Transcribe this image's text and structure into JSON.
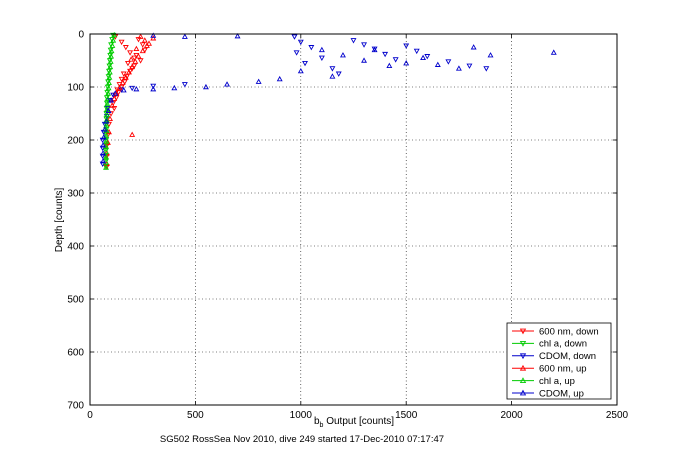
{
  "chart_data": {
    "type": "scatter",
    "title": "",
    "xlabel": "b_b Output [counts]",
    "xlabel_parts": {
      "base": "b",
      "sub": "b",
      "rest": " Output [counts]"
    },
    "ylabel": "Depth [counts]",
    "caption": "SG502 RossSea Nov 2010, dive 249 started 17-Dec-2010 07:17:47",
    "xlim": [
      0,
      2500
    ],
    "ylim": [
      0,
      700
    ],
    "y_reversed": true,
    "grid": true,
    "x_ticks": [
      0,
      500,
      1000,
      1500,
      2000,
      2500
    ],
    "y_ticks": [
      0,
      100,
      200,
      300,
      400,
      500,
      600,
      700
    ],
    "legend_position": "bottom-right",
    "series": [
      {
        "name": "600 nm, down",
        "color": "#ff0000",
        "marker": "triangle-down",
        "points": [
          [
            120,
            5
          ],
          [
            150,
            15
          ],
          [
            170,
            25
          ],
          [
            190,
            35
          ],
          [
            210,
            45
          ],
          [
            180,
            55
          ],
          [
            200,
            65
          ],
          [
            160,
            75
          ],
          [
            150,
            85
          ],
          [
            140,
            95
          ],
          [
            130,
            105
          ],
          [
            120,
            115
          ],
          [
            110,
            130
          ],
          [
            100,
            150
          ],
          [
            90,
            170
          ],
          [
            85,
            190
          ],
          [
            80,
            210
          ],
          [
            80,
            230
          ],
          [
            80,
            250
          ],
          [
            230,
            10
          ],
          [
            250,
            20
          ],
          [
            260,
            30
          ],
          [
            220,
            40
          ],
          [
            240,
            50
          ],
          [
            210,
            60
          ],
          [
            190,
            70
          ],
          [
            175,
            80
          ],
          [
            165,
            90
          ],
          [
            150,
            100
          ],
          [
            135,
            110
          ],
          [
            125,
            120
          ],
          [
            115,
            140
          ]
        ]
      },
      {
        "name": "chl a, down",
        "color": "#00cc00",
        "marker": "triangle-down",
        "points": [
          [
            110,
            2
          ],
          [
            105,
            10
          ],
          [
            100,
            20
          ],
          [
            98,
            30
          ],
          [
            96,
            40
          ],
          [
            94,
            50
          ],
          [
            92,
            60
          ],
          [
            90,
            70
          ],
          [
            88,
            80
          ],
          [
            86,
            90
          ],
          [
            84,
            100
          ],
          [
            82,
            110
          ],
          [
            80,
            120
          ],
          [
            80,
            130
          ],
          [
            79,
            140
          ],
          [
            78,
            150
          ],
          [
            78,
            160
          ],
          [
            77,
            170
          ],
          [
            77,
            180
          ],
          [
            76,
            190
          ],
          [
            76,
            200
          ],
          [
            75,
            210
          ],
          [
            75,
            220
          ],
          [
            75,
            230
          ],
          [
            75,
            240
          ],
          [
            75,
            250
          ]
        ]
      },
      {
        "name": "CDOM, down",
        "color": "#0000cc",
        "marker": "triangle-down",
        "points": [
          [
            970,
            5
          ],
          [
            1000,
            15
          ],
          [
            1050,
            25
          ],
          [
            980,
            35
          ],
          [
            1100,
            45
          ],
          [
            1020,
            55
          ],
          [
            1150,
            65
          ],
          [
            1180,
            75
          ],
          [
            1250,
            12
          ],
          [
            1300,
            20
          ],
          [
            1350,
            28
          ],
          [
            1400,
            38
          ],
          [
            1450,
            48
          ],
          [
            1500,
            22
          ],
          [
            1550,
            32
          ],
          [
            1600,
            42
          ],
          [
            1700,
            52
          ],
          [
            1800,
            60
          ],
          [
            1880,
            65
          ],
          [
            450,
            95
          ],
          [
            300,
            98
          ],
          [
            200,
            102
          ],
          [
            150,
            105
          ],
          [
            110,
            115
          ],
          [
            95,
            125
          ],
          [
            85,
            140
          ],
          [
            80,
            155
          ],
          [
            70,
            170
          ],
          [
            65,
            185
          ],
          [
            60,
            200
          ],
          [
            60,
            215
          ],
          [
            60,
            230
          ],
          [
            60,
            245
          ]
        ]
      },
      {
        "name": "600 nm, up",
        "color": "#ff0000",
        "marker": "triangle-up",
        "points": [
          [
            240,
            5
          ],
          [
            260,
            12
          ],
          [
            270,
            22
          ],
          [
            250,
            32
          ],
          [
            230,
            42
          ],
          [
            215,
            52
          ],
          [
            200,
            62
          ],
          [
            185,
            72
          ],
          [
            170,
            82
          ],
          [
            155,
            92
          ],
          [
            140,
            102
          ],
          [
            125,
            112
          ],
          [
            115,
            122
          ],
          [
            105,
            135
          ],
          [
            95,
            160
          ],
          [
            90,
            185
          ],
          [
            200,
            190
          ],
          [
            85,
            205
          ],
          [
            80,
            225
          ],
          [
            80,
            245
          ],
          [
            300,
            8
          ],
          [
            280,
            18
          ],
          [
            220,
            28
          ],
          [
            195,
            48
          ]
        ]
      },
      {
        "name": "chl a, up",
        "color": "#00cc00",
        "marker": "triangle-up",
        "points": [
          [
            115,
            2
          ],
          [
            110,
            12
          ],
          [
            106,
            22
          ],
          [
            102,
            32
          ],
          [
            100,
            42
          ],
          [
            98,
            52
          ],
          [
            96,
            62
          ],
          [
            94,
            72
          ],
          [
            92,
            82
          ],
          [
            90,
            92
          ],
          [
            88,
            102
          ],
          [
            86,
            112
          ],
          [
            84,
            122
          ],
          [
            82,
            132
          ],
          [
            81,
            142
          ],
          [
            80,
            152
          ],
          [
            79,
            162
          ],
          [
            78,
            172
          ],
          [
            78,
            182
          ],
          [
            77,
            192
          ],
          [
            77,
            202
          ],
          [
            76,
            212
          ],
          [
            76,
            222
          ],
          [
            76,
            232
          ],
          [
            76,
            242
          ],
          [
            76,
            252
          ]
        ]
      },
      {
        "name": "CDOM, up",
        "color": "#0000cc",
        "marker": "triangle-up",
        "points": [
          [
            300,
            3
          ],
          [
            450,
            5
          ],
          [
            700,
            4
          ],
          [
            1100,
            30
          ],
          [
            1200,
            40
          ],
          [
            1300,
            50
          ],
          [
            1350,
            30
          ],
          [
            1420,
            60
          ],
          [
            1500,
            55
          ],
          [
            1580,
            45
          ],
          [
            1650,
            58
          ],
          [
            1750,
            65
          ],
          [
            1820,
            25
          ],
          [
            1900,
            40
          ],
          [
            2200,
            35
          ],
          [
            1000,
            70
          ],
          [
            1150,
            80
          ],
          [
            900,
            85
          ],
          [
            800,
            90
          ],
          [
            650,
            95
          ],
          [
            550,
            100
          ],
          [
            400,
            102
          ],
          [
            300,
            104
          ],
          [
            220,
            104
          ],
          [
            160,
            106
          ],
          [
            120,
            112
          ],
          [
            100,
            125
          ],
          [
            88,
            145
          ],
          [
            78,
            165
          ],
          [
            70,
            180
          ],
          [
            65,
            195
          ],
          [
            62,
            210
          ],
          [
            62,
            225
          ],
          [
            62,
            240
          ]
        ]
      }
    ]
  }
}
